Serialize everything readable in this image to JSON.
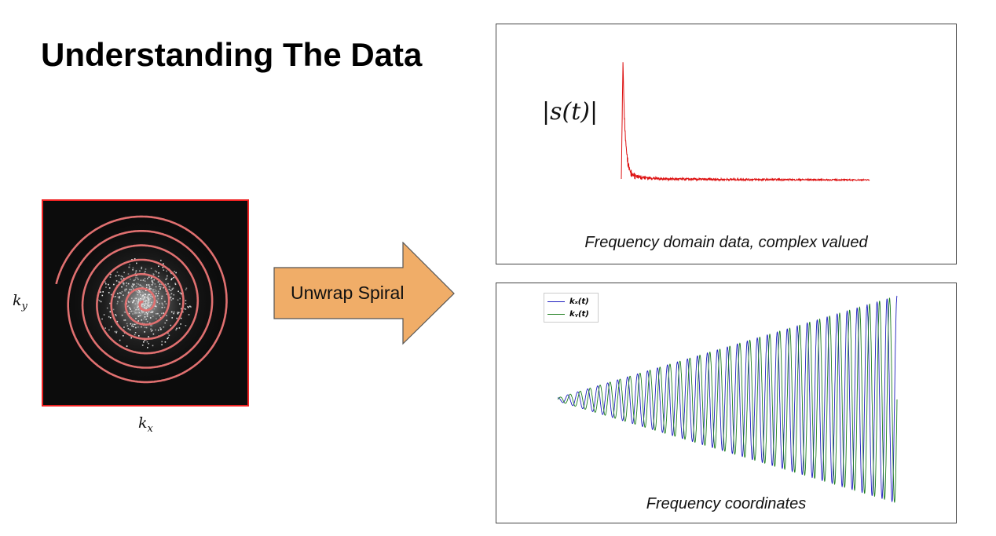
{
  "slide": {
    "title": "Understanding The Data"
  },
  "kspace": {
    "xlabel": "k",
    "xlabel_sub": "x",
    "ylabel": "k",
    "ylabel_sub": "y",
    "frame_color": "#ee2222",
    "spiral_color": "#e07070"
  },
  "arrow": {
    "label": "Unwrap Spiral",
    "fill": "#f0ad68"
  },
  "panels": {
    "signal": {
      "label": "|s(t)|",
      "caption": "Frequency domain data, complex valued",
      "line_color": "#dd1111"
    },
    "coords": {
      "caption": "Frequency coordinates",
      "legend_kx": "kₓ(t)",
      "legend_ky": "kᵧ(t)",
      "kx_color": "#1f1fbf",
      "ky_color": "#1f7f1f"
    }
  },
  "chart_data": [
    {
      "type": "line",
      "series": [
        {
          "name": "|s(t)|",
          "shape": "sharp peak then rapid decay to a low noisy plateau"
        }
      ]
    },
    {
      "type": "line",
      "series": [
        {
          "name": "kx(t)",
          "shape": "oscillation with linearly growing amplitude"
        },
        {
          "name": "ky(t)",
          "shape": "oscillation with linearly growing amplitude, phase shifted"
        }
      ],
      "cycles": 34
    }
  ]
}
